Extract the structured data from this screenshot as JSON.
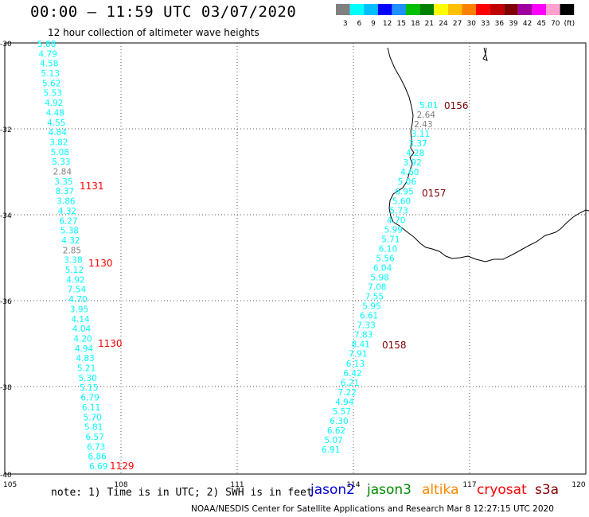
{
  "title": "00:00 – 11:59 UTC 03/07/2020",
  "subtitle": "12 hour collection of altimeter wave heights",
  "legend": {
    "colors": [
      "#808080",
      "#00ffff",
      "#00bfff",
      "#0000ff",
      "#1e90ff",
      "#00c000",
      "#008000",
      "#ffff00",
      "#ffc000",
      "#ff8000",
      "#ff0000",
      "#c00000",
      "#800000",
      "#a000a0",
      "#ff00ff",
      "#ffa0d0",
      "#000000"
    ],
    "labels": [
      "3",
      "6",
      "9",
      "12",
      "15",
      "18",
      "21",
      "24",
      "27",
      "30",
      "33",
      "36",
      "39",
      "42",
      "45",
      "70",
      "(ft)"
    ]
  },
  "axes": {
    "lon_ticks": [
      "105",
      "108",
      "111",
      "114",
      "117",
      "120"
    ],
    "lat_ticks": [
      "-30",
      "-32",
      "-34",
      "-36",
      "-38",
      "-40"
    ]
  },
  "tracks": [
    {
      "values": [
        "5.88",
        "4.79",
        "4.58",
        "5.13",
        "5.62",
        "5.53",
        "4.92",
        "4.48",
        "4.55",
        "4.84",
        "3.82",
        "5.08",
        "5.33",
        "2.84",
        "3.35",
        "8.37",
        "3.86",
        "4.32",
        "6.27",
        "5.38",
        "4.32",
        "2.85",
        "3.38",
        "5.12",
        "4.92",
        "7.54",
        "4.70",
        "3.95",
        "4.14",
        "4.04",
        "4.20",
        "4.94",
        "4.83",
        "5.21",
        "5.30",
        "5.15",
        "6.79",
        "6.11",
        "5.70",
        "5.81",
        "6.57",
        "6.73",
        "6.86",
        "6.69"
      ]
    },
    {
      "values": [
        "5.01",
        "2.64",
        "2.43",
        "3.11",
        "3.37",
        "4.28",
        "3.92",
        "4.60",
        "5.06",
        "6.95",
        "5.60",
        "5.73",
        "4.70",
        "5.99",
        "5.71",
        "6.10",
        "5.56",
        "6.04",
        "5.98",
        "7.08",
        "7.55",
        "5.95",
        "6.61",
        "7.33",
        "7.83",
        "8.41",
        "7.91",
        "6.13",
        "6.42",
        "6.21",
        "7.22",
        "4.94",
        "5.57",
        "6.30",
        "6.62",
        "5.07",
        "6.91"
      ]
    }
  ],
  "time_labels": [
    {
      "text": "1131",
      "color": "#ff0000"
    },
    {
      "text": "1130",
      "color": "#ff0000"
    },
    {
      "text": "1130",
      "color": "#ff0000"
    },
    {
      "text": "1129",
      "color": "#ff0000"
    },
    {
      "text": "0156",
      "color": "#800000"
    },
    {
      "text": "0157",
      "color": "#800000"
    },
    {
      "text": "0158",
      "color": "#800000"
    }
  ],
  "note": "note: 1) Time is in UTC; 2) SWH is in feet",
  "satellites": [
    {
      "name": "jason2",
      "color": "#0000cc"
    },
    {
      "name": "jason3",
      "color": "#008800"
    },
    {
      "name": "altika",
      "color": "#ff8800"
    },
    {
      "name": "cryosat",
      "color": "#ff0000"
    },
    {
      "name": "s3a",
      "color": "#800000"
    }
  ],
  "footer": "NOAA/NESDIS Center for Satellite Applications and Research    Mar  8 12:27:15 UTC 2020"
}
